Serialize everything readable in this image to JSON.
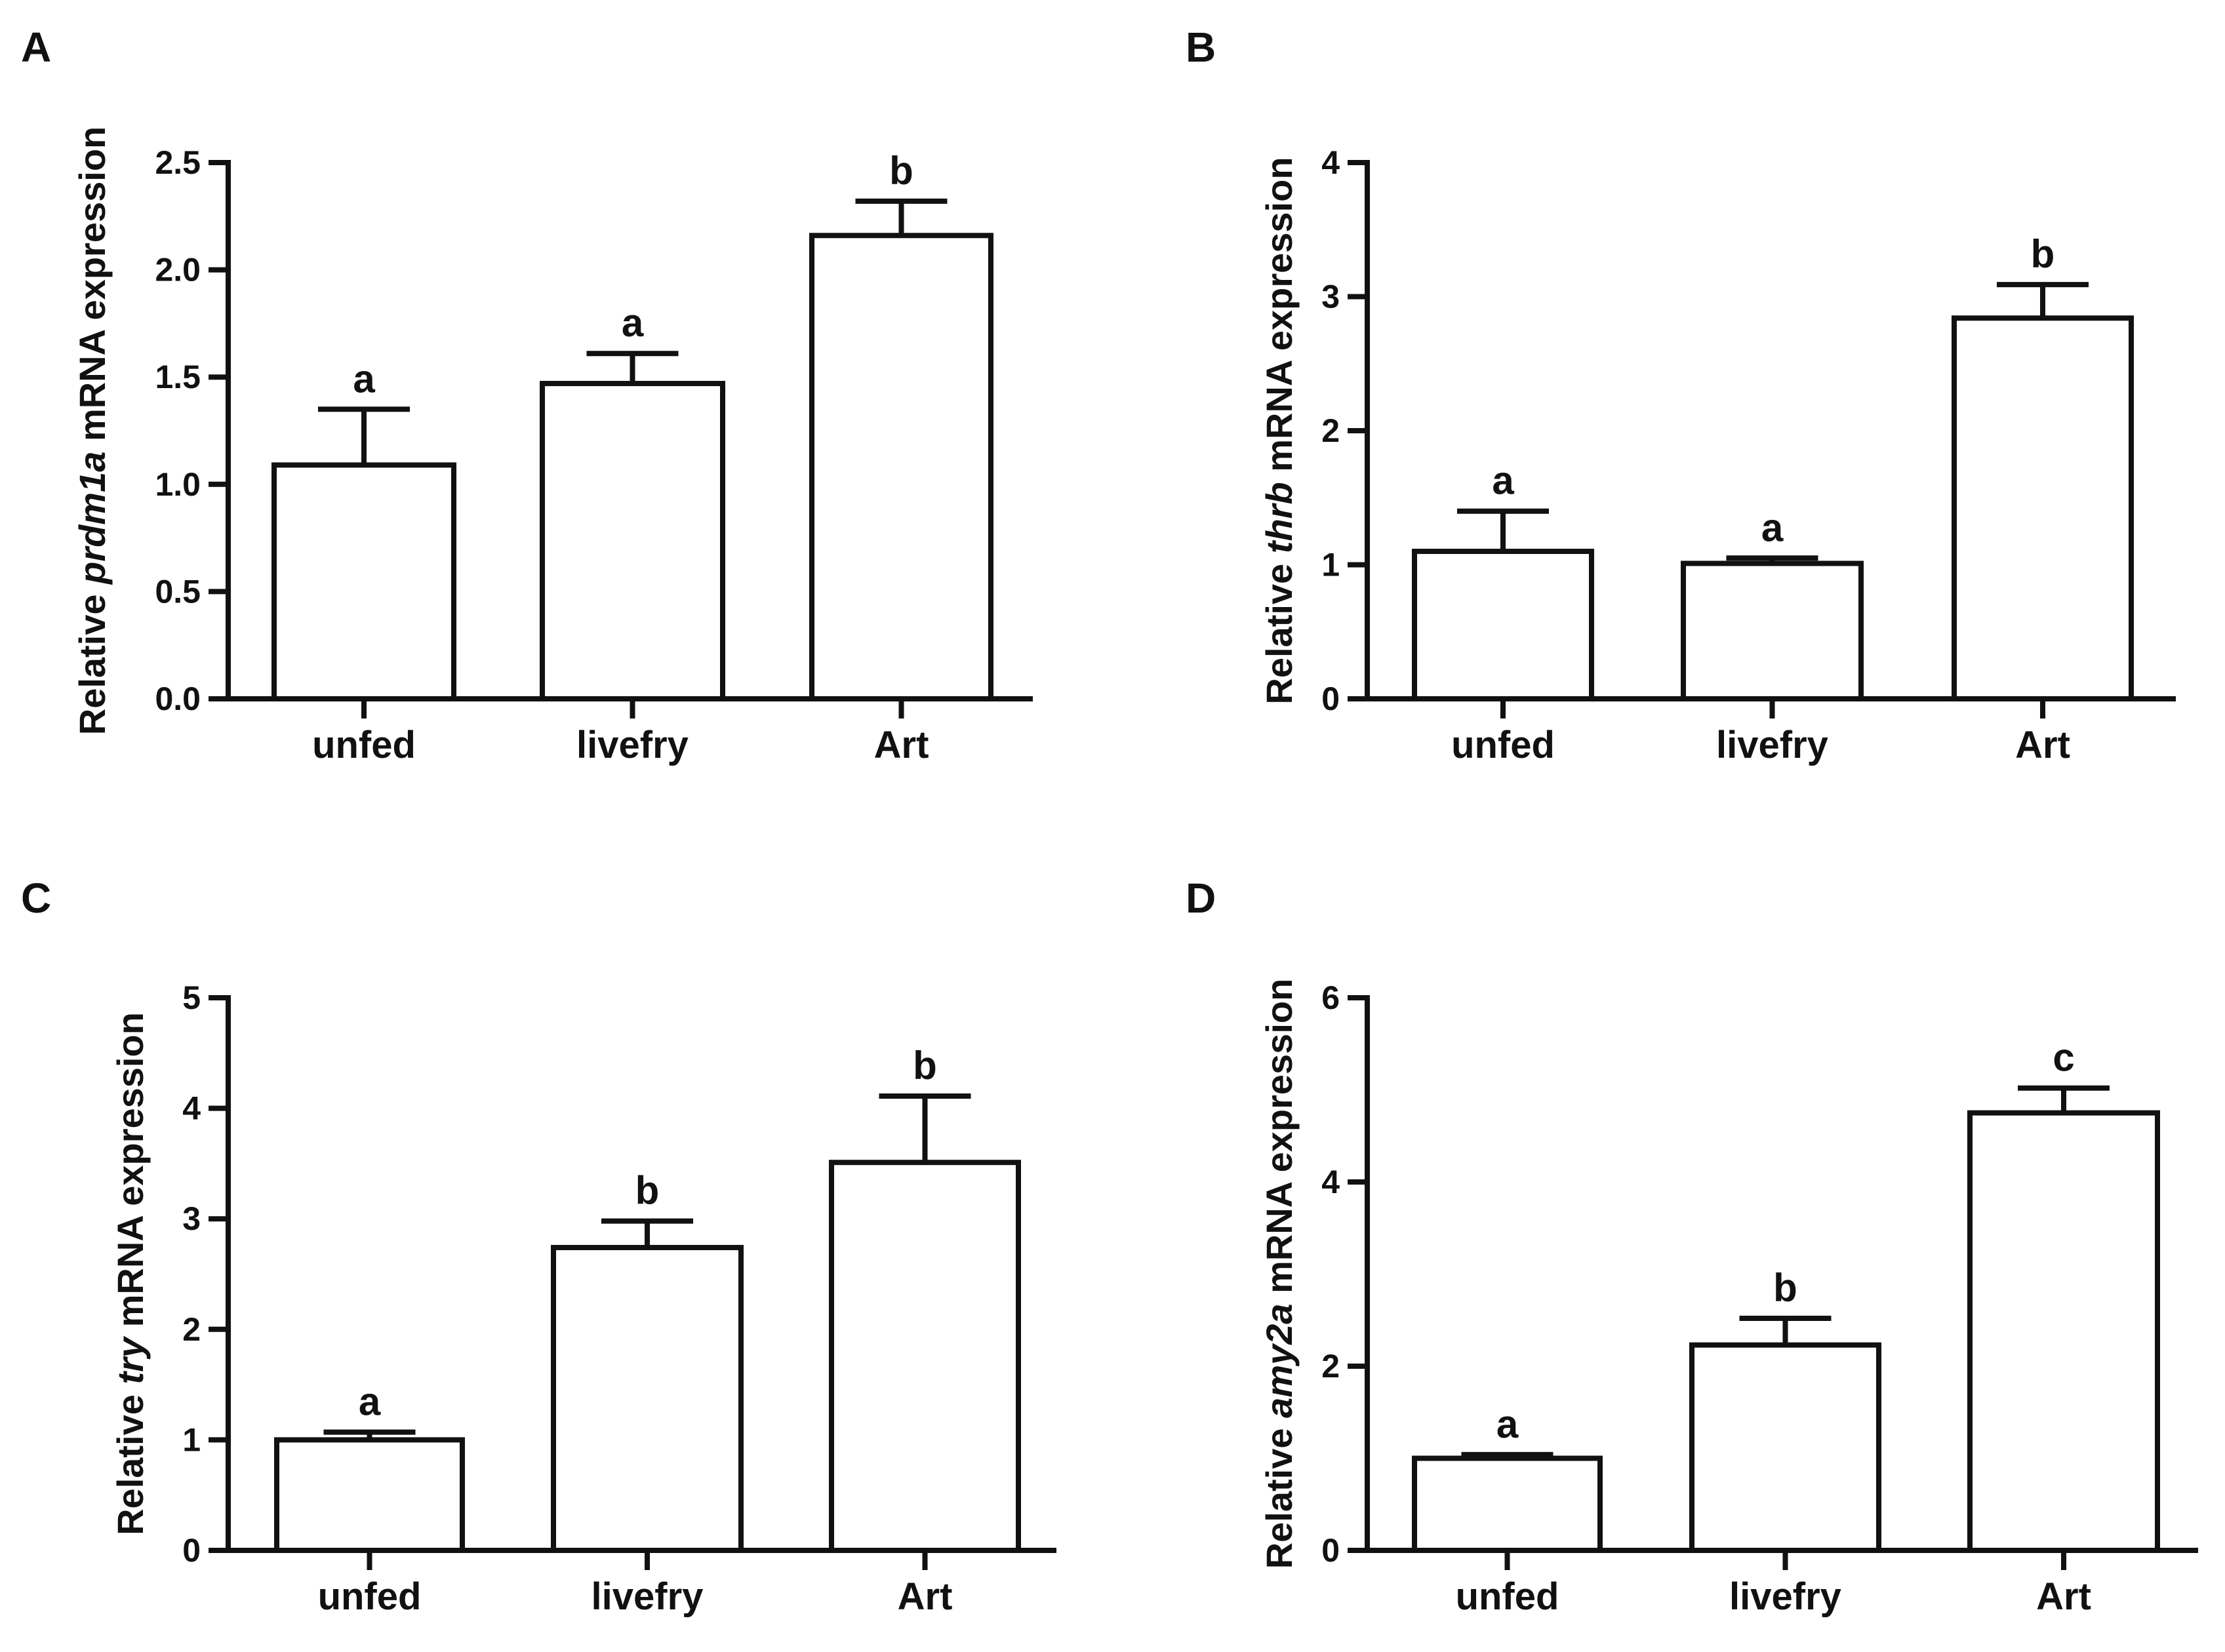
{
  "figure": {
    "panels": [
      "A",
      "B",
      "C",
      "D"
    ]
  },
  "chart_data": [
    {
      "panel": "A",
      "type": "bar",
      "categories": [
        "unfed",
        "livefry",
        "Art"
      ],
      "values": [
        1.09,
        1.47,
        2.16
      ],
      "errors": [
        0.26,
        0.14,
        0.16
      ],
      "significance": [
        "a",
        "a",
        "b"
      ],
      "ylim": [
        0,
        2.5
      ],
      "yticks": [
        "0.0",
        "0.5",
        "1.0",
        "1.5",
        "2.0",
        "2.5"
      ],
      "ylabel_prefix": "Relative ",
      "ylabel_gene": "prdm1a",
      "ylabel_suffix": " mRNA expression",
      "xlabel": ""
    },
    {
      "panel": "B",
      "type": "bar",
      "categories": [
        "unfed",
        "livefry",
        "Art"
      ],
      "values": [
        1.1,
        1.01,
        2.84
      ],
      "errors": [
        0.3,
        0.04,
        0.25
      ],
      "significance": [
        "a",
        "a",
        "b"
      ],
      "ylim": [
        0,
        4
      ],
      "yticks": [
        "0",
        "1",
        "2",
        "3",
        "4"
      ],
      "ylabel_prefix": "Relative ",
      "ylabel_gene": "thrb",
      "ylabel_suffix": " mRNA expression",
      "xlabel": ""
    },
    {
      "panel": "C",
      "type": "bar",
      "categories": [
        "unfed",
        "livefry",
        "Art"
      ],
      "values": [
        1.0,
        2.74,
        3.51
      ],
      "errors": [
        0.07,
        0.24,
        0.6
      ],
      "significance": [
        "a",
        "b",
        "b"
      ],
      "ylim": [
        0,
        5
      ],
      "yticks": [
        "0",
        "1",
        "2",
        "3",
        "4",
        "5"
      ],
      "ylabel_prefix": "Relative ",
      "ylabel_gene": "try",
      "ylabel_suffix": " mRNA expression",
      "xlabel": ""
    },
    {
      "panel": "D",
      "type": "bar",
      "categories": [
        "unfed",
        "livefry",
        "Art"
      ],
      "values": [
        1.0,
        2.23,
        4.75
      ],
      "errors": [
        0.04,
        0.29,
        0.27
      ],
      "significance": [
        "a",
        "b",
        "c"
      ],
      "ylim": [
        0,
        6
      ],
      "yticks": [
        "0",
        "2",
        "4",
        "6"
      ],
      "ylabel_prefix": "Relative ",
      "ylabel_gene": "amy2a",
      "ylabel_suffix": " mRNA expression",
      "xlabel": ""
    }
  ]
}
